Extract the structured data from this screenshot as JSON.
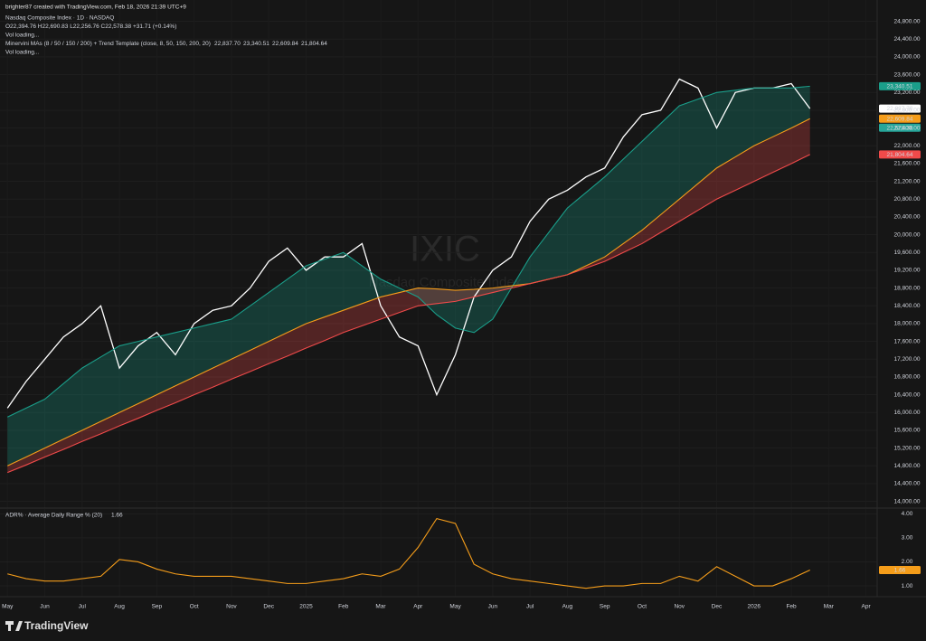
{
  "header": "brighter87 created with TradingView.com, Feb 18, 2026 21:39 UTC+9",
  "logo": "TradingView",
  "chart_data": [
    {
      "type": "line",
      "title": "IXIC",
      "subtitle": "Nasdaq Composite Index",
      "legend": [
        "Nasdaq Composite Index · 1D · NASDAQ",
        "O22,394.76 H22,690.83 L22,256.76 C22,578.38 +31.71 (+0.14%)",
        "Vol loading...",
        "Minervini MAs (8 / 50 / 150 / 200) + Trend Template (close, 8, 50, 150, 200, 20)",
        "Vol loading..."
      ],
      "last_close": {
        "value": 22578.38,
        "label": "22,578.38"
      },
      "x": [
        0,
        0.5,
        1,
        1.5,
        2,
        2.5,
        3,
        3.5,
        4,
        4.5,
        5,
        5.5,
        6,
        6.5,
        7,
        7.5,
        8,
        8.5,
        9,
        9.5,
        10,
        10.5,
        11,
        11.5,
        12,
        12.5,
        13,
        13.5,
        14,
        14.5,
        15,
        15.5,
        16,
        16.5,
        17,
        17.5,
        18,
        18.5,
        19,
        19.5,
        20,
        20.5,
        21,
        21.5
      ],
      "series": [
        {
          "color": "#ffffff",
          "last_label": "22,837.70",
          "values": [
            16100,
            16700,
            17200,
            17700,
            18000,
            18400,
            17000,
            17500,
            17800,
            17300,
            18000,
            18300,
            18400,
            18800,
            19400,
            19700,
            19200,
            19500,
            19500,
            19800,
            18400,
            17700,
            17500,
            16400,
            17300,
            18600,
            19200,
            19500,
            20300,
            20800,
            21000,
            21300,
            21500,
            22200,
            22700,
            22800,
            23500,
            23300,
            22400,
            23200,
            23300,
            23300,
            23400,
            22837.7
          ]
        },
        {
          "color": "#1a9e8a",
          "last_label": "23,340.51",
          "values": [
            15900,
            16100,
            16300,
            16650,
            17000,
            17250,
            17500,
            17600,
            17700,
            17800,
            17900,
            18000,
            18100,
            18400,
            18700,
            19000,
            19300,
            19450,
            19600,
            19300,
            19000,
            18800,
            18600,
            18200,
            17900,
            17800,
            18100,
            18800,
            19500,
            20050,
            20600,
            20950,
            21300,
            21700,
            22100,
            22500,
            22900,
            23050,
            23200,
            23250,
            23300,
            23300,
            23300,
            23340.51
          ]
        },
        {
          "color": "#f59d1a",
          "last_label": "22,609.84",
          "values": [
            14800,
            15000,
            15200,
            15400,
            15600,
            15800,
            16000,
            16200,
            16400,
            16600,
            16800,
            17000,
            17200,
            17400,
            17600,
            17800,
            18000,
            18150,
            18300,
            18450,
            18600,
            18700,
            18800,
            18780,
            18750,
            18770,
            18800,
            18850,
            18900,
            19000,
            19100,
            19300,
            19500,
            19800,
            20100,
            20450,
            20800,
            21150,
            21500,
            21750,
            22000,
            22200,
            22400,
            22609.84
          ]
        },
        {
          "color": "#f04a4a",
          "last_label": "21,804.64",
          "values": [
            14650,
            14820,
            15000,
            15170,
            15350,
            15520,
            15700,
            15870,
            16050,
            16220,
            16400,
            16570,
            16750,
            16920,
            17100,
            17270,
            17450,
            17620,
            17800,
            17950,
            18100,
            18250,
            18400,
            18450,
            18500,
            18600,
            18700,
            18800,
            18900,
            19000,
            19100,
            19250,
            19400,
            19600,
            19800,
            20050,
            20300,
            20550,
            20800,
            21000,
            21200,
            21400,
            21600,
            21804.64
          ]
        }
      ],
      "xlim": [
        -0.2,
        23.3
      ],
      "xticks": [
        {
          "value": 0,
          "label": "May"
        },
        {
          "value": 1,
          "label": "Jun"
        },
        {
          "value": 2,
          "label": "Jul"
        },
        {
          "value": 3,
          "label": "Aug"
        },
        {
          "value": 4,
          "label": "Sep"
        },
        {
          "value": 5,
          "label": "Oct"
        },
        {
          "value": 6,
          "label": "Nov"
        },
        {
          "value": 7,
          "label": "Dec"
        },
        {
          "value": 8,
          "label": "2025"
        },
        {
          "value": 9,
          "label": "Feb"
        },
        {
          "value": 10,
          "label": "Mar"
        },
        {
          "value": 11,
          "label": "Apr"
        },
        {
          "value": 12,
          "label": "May"
        },
        {
          "value": 13,
          "label": "Jun"
        },
        {
          "value": 14,
          "label": "Jul"
        },
        {
          "value": 15,
          "label": "Aug"
        },
        {
          "value": 16,
          "label": "Sep"
        },
        {
          "value": 17,
          "label": "Oct"
        },
        {
          "value": 18,
          "label": "Nov"
        },
        {
          "value": 19,
          "label": "Dec"
        },
        {
          "value": 20,
          "label": "2026"
        },
        {
          "value": 21,
          "label": "Feb"
        },
        {
          "value": 22,
          "label": "Mar"
        },
        {
          "value": 23,
          "label": "Apr"
        }
      ],
      "ylim": [
        13850,
        25280
      ],
      "yticks": [
        {
          "value": 14000,
          "label": "14,000.00"
        },
        {
          "value": 14400,
          "label": "14,400.00"
        },
        {
          "value": 14800,
          "label": "14,800.00"
        },
        {
          "value": 15200,
          "label": "15,200.00"
        },
        {
          "value": 15600,
          "label": "15,600.00"
        },
        {
          "value": 16000,
          "label": "16,000.00"
        },
        {
          "value": 16400,
          "label": "16,400.00"
        },
        {
          "value": 16800,
          "label": "16,800.00"
        },
        {
          "value": 17200,
          "label": "17,200.00"
        },
        {
          "value": 17600,
          "label": "17,600.00"
        },
        {
          "value": 18000,
          "label": "18,000.00"
        },
        {
          "value": 18400,
          "label": "18,400.00"
        },
        {
          "value": 18800,
          "label": "18,800.00"
        },
        {
          "value": 19200,
          "label": "19,200.00"
        },
        {
          "value": 19600,
          "label": "19,600.00"
        },
        {
          "value": 20000,
          "label": "20,000.00"
        },
        {
          "value": 20400,
          "label": "20,400.00"
        },
        {
          "value": 20800,
          "label": "20,800.00"
        },
        {
          "value": 21200,
          "label": "21,200.00"
        },
        {
          "value": 21600,
          "label": "21,600.00"
        },
        {
          "value": 22000,
          "label": "22,000.00"
        },
        {
          "value": 22400,
          "label": "22,400.00"
        },
        {
          "value": 22800,
          "label": "22,800.00"
        },
        {
          "value": 23200,
          "label": "23,200.00"
        },
        {
          "value": 23600,
          "label": "23,600.00"
        },
        {
          "value": 24000,
          "label": "24,000.00"
        },
        {
          "value": 24400,
          "label": "24,400.00"
        },
        {
          "value": 24800,
          "label": "24,800.00"
        }
      ],
      "grid": true
    },
    {
      "type": "line",
      "title": "ADR% · Average Daily Range % (20)",
      "x": [
        0,
        0.5,
        1,
        1.5,
        2,
        2.5,
        3,
        3.5,
        4,
        4.5,
        5,
        5.5,
        6,
        6.5,
        7,
        7.5,
        8,
        8.5,
        9,
        9.5,
        10,
        10.5,
        11,
        11.5,
        12,
        12.5,
        13,
        13.5,
        14,
        14.5,
        15,
        15.5,
        16,
        16.5,
        17,
        17.5,
        18,
        18.5,
        19,
        19.5,
        20,
        20.5,
        21,
        21.5
      ],
      "series": [
        {
          "color": "#f59d1a",
          "last_label": "1.66",
          "values": [
            1.5,
            1.3,
            1.2,
            1.2,
            1.3,
            1.4,
            2.1,
            2.0,
            1.7,
            1.5,
            1.4,
            1.4,
            1.4,
            1.3,
            1.2,
            1.1,
            1.1,
            1.2,
            1.3,
            1.5,
            1.4,
            1.7,
            2.6,
            3.8,
            3.6,
            1.9,
            1.5,
            1.3,
            1.2,
            1.1,
            1.0,
            0.9,
            1.0,
            1.0,
            1.1,
            1.1,
            1.4,
            1.2,
            1.8,
            1.4,
            1.0,
            1.0,
            1.3,
            1.66
          ]
        }
      ],
      "xlim": [
        -0.2,
        23.3
      ],
      "ylim": [
        0.55,
        4.2
      ],
      "yticks": [
        {
          "value": 1,
          "label": "1.00"
        },
        {
          "value": 2,
          "label": "2.00"
        },
        {
          "value": 3,
          "label": "3.00"
        },
        {
          "value": 4,
          "label": "4.00"
        }
      ],
      "grid": true
    }
  ]
}
